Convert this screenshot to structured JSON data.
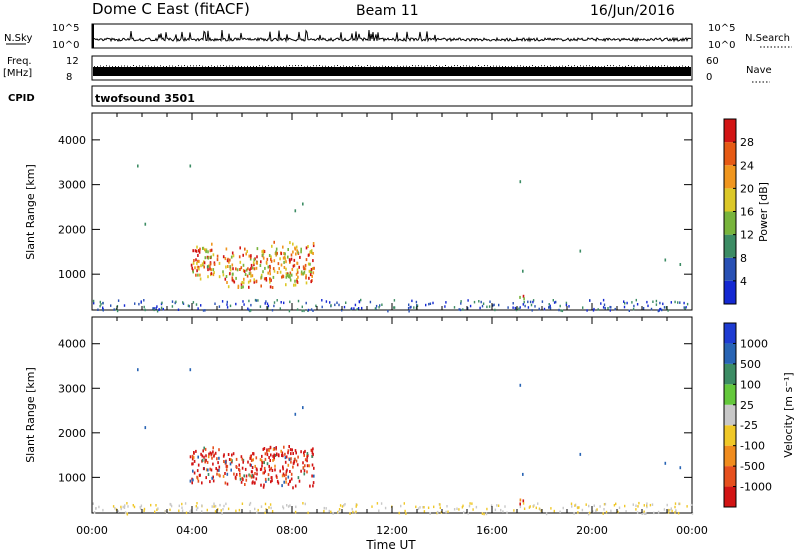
{
  "header": {
    "title": "Dome C East (fitACF)",
    "beam": "Beam 11",
    "date": "16/Jun/2016"
  },
  "aux": {
    "nsky_label": "N.Sky",
    "nsky_ticks": [
      "10^5",
      "10^0"
    ],
    "nsearch_label": "N.Search",
    "nsearch_ticks": [
      "10^5",
      "10^0"
    ],
    "freq_label_1": "Freq.",
    "freq_label_2": "[MHz]",
    "freq_ticks": [
      "12",
      "8"
    ],
    "nave_label": "Nave",
    "nave_ticks": [
      "60",
      "0"
    ],
    "cpid_label": "CPID",
    "cpid_value": "twofsound 3501"
  },
  "chart_data": [
    {
      "type": "heatmap",
      "name": "power-panel",
      "xlabel": "",
      "ylabel": "Slant Range [km]",
      "ylim": [
        200,
        4600
      ],
      "yticks": [
        "1000",
        "2000",
        "3000",
        "4000"
      ],
      "colorbar": {
        "label": "Power [dB]",
        "ticks": [
          "4",
          "8",
          "12",
          "16",
          "20",
          "24",
          "28"
        ],
        "range": [
          0,
          32
        ],
        "colors": [
          "#1428d2",
          "#2850b4",
          "#3c8c64",
          "#78b43c",
          "#dcc828",
          "#f0961e",
          "#e65a14",
          "#d21414"
        ]
      },
      "clusters": [
        {
          "t_start": 3.9,
          "t_end": 5.1,
          "r_low": 850,
          "r_high": 1750,
          "level": "high"
        },
        {
          "t_start": 5.2,
          "t_end": 6.6,
          "r_low": 700,
          "r_high": 1650,
          "level": "high"
        },
        {
          "t_start": 6.7,
          "t_end": 8.9,
          "r_low": 700,
          "r_high": 1800,
          "level": "high"
        },
        {
          "t_start": 17.0,
          "t_end": 17.3,
          "r_low": 420,
          "r_high": 560,
          "level": "high"
        }
      ]
    },
    {
      "type": "heatmap",
      "name": "velocity-panel",
      "xlabel": "Time UT",
      "ylabel": "Slant Range [km]",
      "ylim": [
        200,
        4600
      ],
      "yticks": [
        "1000",
        "2000",
        "3000",
        "4000"
      ],
      "xticks": [
        "00:00",
        "04:00",
        "08:00",
        "12:00",
        "16:00",
        "20:00",
        "00:00"
      ],
      "colorbar": {
        "label": "Velocity [m s⁻¹]",
        "ticks": [
          "1000",
          "500",
          "100",
          "25",
          "-25",
          "-100",
          "-500",
          "-1000"
        ],
        "colors": [
          "#1e3cd2",
          "#2864b4",
          "#3c8c64",
          "#64c83c",
          "#c8c8c8",
          "#f0c828",
          "#f08c1e",
          "#e6501e",
          "#d21414"
        ]
      },
      "clusters": [
        {
          "t_start": 3.9,
          "t_end": 5.1,
          "r_low": 850,
          "r_high": 1750,
          "level": "negative"
        },
        {
          "t_start": 5.2,
          "t_end": 6.6,
          "r_low": 750,
          "r_high": 1650,
          "level": "negative"
        },
        {
          "t_start": 6.7,
          "t_end": 8.9,
          "r_low": 750,
          "r_high": 1800,
          "level": "negative"
        },
        {
          "t_start": 17.0,
          "t_end": 17.3,
          "r_low": 420,
          "r_high": 560,
          "level": "mixed"
        }
      ]
    }
  ]
}
